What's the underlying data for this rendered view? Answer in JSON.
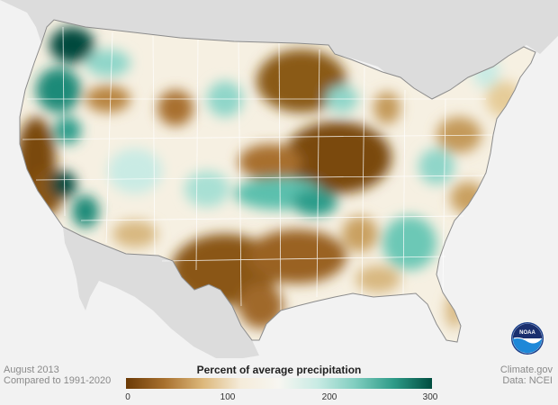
{
  "map": {
    "region": "Contiguous United States",
    "variable": "Percent of average precipitation",
    "colors": {
      "ocean_bg": "#f2f2f2",
      "land_outside": "#dcdcdc",
      "land_fill": "#f3ead8",
      "state_border": "#ffffff",
      "country_border": "#8c8c8c",
      "very_dry": "#7a4a10",
      "dry": "#b8843f",
      "slightly_dry": "#e6cc98",
      "near_average": "#f7f3ea",
      "wet": "#8fd6c9",
      "very_wet": "#2a9c8a",
      "extremely_wet": "#004a3c"
    }
  },
  "legend": {
    "title": "Percent of average precipitation",
    "ticks": [
      "0",
      "100",
      "200",
      "300"
    ],
    "min": 0,
    "max": 300,
    "stops": [
      "#6b3a06",
      "#a8702e",
      "#dcb77a",
      "#f5ecda",
      "#f7f6f1",
      "#c9ebe4",
      "#7fcdbf",
      "#2e9b88",
      "#004d40"
    ]
  },
  "caption": {
    "date": "August 2013",
    "baseline": "Compared to 1991-2020",
    "credit": "Climate.gov",
    "source": "Data: NCEI"
  },
  "logo": {
    "text": "NOAA"
  }
}
